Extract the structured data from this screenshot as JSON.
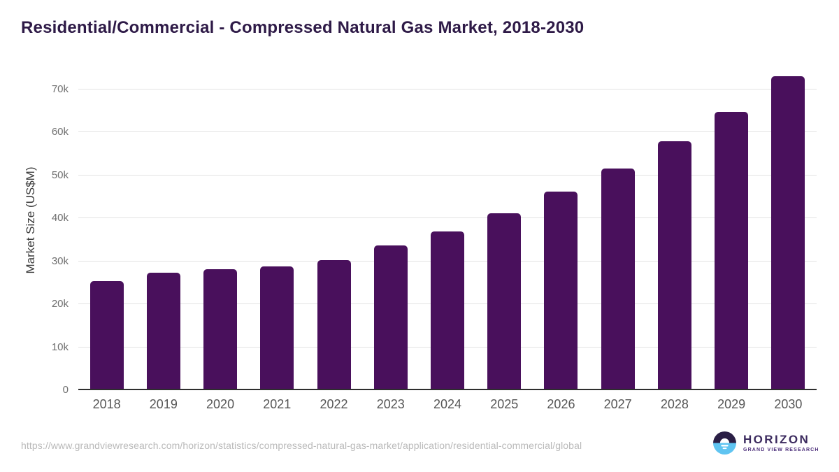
{
  "title": "Residential/Commercial - Compressed Natural Gas Market, 2018-2030",
  "source": {
    "url": "https://www.grandviewresearch.com/horizon/statistics/compressed-natural-gas-market/application/residential-commercial/global"
  },
  "logo": {
    "name": "HORIZON",
    "subtitle": "GRAND VIEW RESEARCH"
  },
  "colors": {
    "title": "#2e1a47",
    "bar": "#49105c",
    "gridline": "#e3e3e3",
    "axis_line": "#2e2e2e",
    "y_tick": "#6f6f6f",
    "x_tick": "#565656",
    "url_text": "#b9b9b9",
    "logo_dark": "#2a1e45",
    "logo_blue": "#5fc4f1"
  },
  "chart_data": {
    "type": "bar",
    "title": "Residential/Commercial - Compressed Natural Gas Market, 2018-2030",
    "categories": [
      "2018",
      "2019",
      "2020",
      "2021",
      "2022",
      "2023",
      "2024",
      "2025",
      "2026",
      "2027",
      "2028",
      "2029",
      "2030"
    ],
    "values": [
      25000,
      27100,
      27900,
      28500,
      30000,
      33300,
      36700,
      40900,
      45900,
      51300,
      57600,
      64500,
      72700
    ],
    "xlabel": "",
    "ylabel": "Market Size (US$M)",
    "ylim": [
      0,
      70000
    ],
    "yticks": [
      0,
      10000,
      20000,
      30000,
      40000,
      50000,
      60000,
      70000
    ],
    "ytick_labels": [
      "0",
      "10k",
      "20k",
      "30k",
      "40k",
      "50k",
      "60k",
      "70k"
    ],
    "grid": true,
    "legend": false,
    "bar_color": "#49105c"
  }
}
